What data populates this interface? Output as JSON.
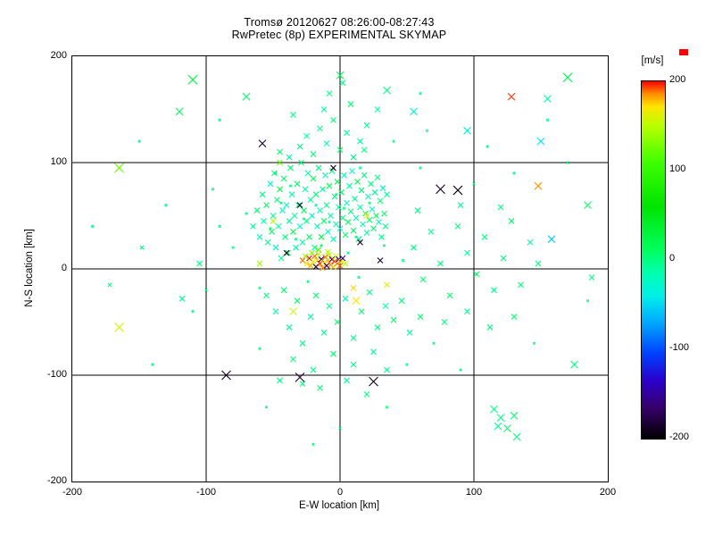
{
  "chart_data": {
    "type": "scatter",
    "title": "Tromsø 20120627 08:26:00-08:27:43",
    "subtitle": "RwPretec (8p) EXPERIMENTAL SKYMAP",
    "xlabel": "E-W location [km]",
    "ylabel": "N-S location [km]",
    "xlim": [
      -200,
      200
    ],
    "ylim": [
      -200,
      200
    ],
    "x_ticks": [
      -200,
      -100,
      0,
      100,
      200
    ],
    "y_ticks": [
      200,
      100,
      0,
      -100,
      -200
    ],
    "grid_values": [
      -100,
      0,
      100
    ],
    "marker": "x",
    "background_color": "#ffffff",
    "axis_color": "#000000",
    "colorbar": {
      "title": "[m/s]",
      "ticks": [
        200,
        100,
        0,
        -100,
        -200
      ],
      "range": [
        -200,
        200
      ],
      "stops": [
        {
          "v": -200,
          "c": "#000000"
        },
        {
          "v": -165,
          "c": "#38006b"
        },
        {
          "v": -135,
          "c": "#2a00cc"
        },
        {
          "v": -105,
          "c": "#0040ff"
        },
        {
          "v": -70,
          "c": "#00a8ff"
        },
        {
          "v": -40,
          "c": "#00f0e8"
        },
        {
          "v": -15,
          "c": "#00ffb0"
        },
        {
          "v": 10,
          "c": "#00ff60"
        },
        {
          "v": 60,
          "c": "#00e400"
        },
        {
          "v": 110,
          "c": "#40ff00"
        },
        {
          "v": 150,
          "c": "#b8ff00"
        },
        {
          "v": 172,
          "c": "#ffe400"
        },
        {
          "v": 186,
          "c": "#ff8c00"
        },
        {
          "v": 200,
          "c": "#ff0000"
        }
      ]
    },
    "point_fields": [
      "x_km",
      "y_km",
      "velocity_ms",
      "marker_halfsize_px_optional"
    ],
    "points": [
      [
        -28,
        8,
        190
      ],
      [
        -25,
        5,
        170
      ],
      [
        -23,
        10,
        200
      ],
      [
        -22,
        3,
        180
      ],
      [
        -20,
        7,
        160
      ],
      [
        -19,
        12,
        190
      ],
      [
        -18,
        2,
        -190
      ],
      [
        -17,
        8,
        175
      ],
      [
        -16,
        14,
        150
      ],
      [
        -15,
        5,
        195
      ],
      [
        -14,
        9,
        -180
      ],
      [
        -13,
        1,
        185
      ],
      [
        -12,
        6,
        165
      ],
      [
        -11,
        11,
        190
      ],
      [
        -10,
        3,
        -170
      ],
      [
        -9,
        8,
        180
      ],
      [
        -8,
        13,
        155
      ],
      [
        -7,
        4,
        190
      ],
      [
        -6,
        9,
        -185
      ],
      [
        -5,
        2,
        175
      ],
      [
        -4,
        7,
        195
      ],
      [
        -3,
        12,
        160
      ],
      [
        -2,
        5,
        185
      ],
      [
        -1,
        9,
        -175
      ],
      [
        0,
        3,
        190
      ],
      [
        1,
        7,
        170
      ],
      [
        -26,
        12,
        140
      ],
      [
        -21,
        15,
        130
      ],
      [
        -16,
        18,
        120
      ],
      [
        -9,
        16,
        145
      ],
      [
        2,
        10,
        -160
      ],
      [
        4,
        5,
        150
      ],
      [
        -65,
        40,
        -10
      ],
      [
        -62,
        55,
        5
      ],
      [
        -60,
        30,
        -20
      ],
      [
        -58,
        70,
        0
      ],
      [
        -57,
        45,
        -15
      ],
      [
        -55,
        60,
        10
      ],
      [
        -54,
        25,
        -5
      ],
      [
        -52,
        80,
        -25
      ],
      [
        -51,
        35,
        15
      ],
      [
        -50,
        50,
        -10
      ],
      [
        -49,
        90,
        0
      ],
      [
        -48,
        20,
        -30
      ],
      [
        -47,
        65,
        5
      ],
      [
        -46,
        40,
        -15
      ],
      [
        -45,
        75,
        20
      ],
      [
        -44,
        10,
        -5
      ],
      [
        -43,
        55,
        -20
      ],
      [
        -42,
        85,
        10
      ],
      [
        -41,
        30,
        0
      ],
      [
        -40,
        60,
        -25
      ],
      [
        -39,
        15,
        15
      ],
      [
        -38,
        45,
        -10
      ],
      [
        -37,
        95,
        5
      ],
      [
        -36,
        70,
        -15
      ],
      [
        -35,
        35,
        25
      ],
      [
        -34,
        50,
        -5
      ],
      [
        -33,
        20,
        -20
      ],
      [
        -32,
        80,
        10
      ],
      [
        -31,
        60,
        0
      ],
      [
        -30,
        40,
        -30
      ],
      [
        -29,
        100,
        5
      ],
      [
        -28,
        25,
        -10
      ],
      [
        -27,
        55,
        20
      ],
      [
        -26,
        75,
        -15
      ],
      [
        -25,
        45,
        0
      ],
      [
        -24,
        90,
        -20
      ],
      [
        -23,
        30,
        10
      ],
      [
        -22,
        65,
        -5
      ],
      [
        -21,
        50,
        -25
      ],
      [
        -20,
        85,
        15
      ],
      [
        -19,
        20,
        -10
      ],
      [
        -18,
        70,
        5
      ],
      [
        -17,
        40,
        -15
      ],
      [
        -16,
        95,
        0
      ],
      [
        -15,
        55,
        -20
      ],
      [
        -14,
        30,
        25
      ],
      [
        -13,
        75,
        -5
      ],
      [
        -12,
        45,
        10
      ],
      [
        -11,
        88,
        -15
      ],
      [
        -10,
        60,
        0
      ],
      [
        -9,
        35,
        -25
      ],
      [
        -8,
        78,
        15
      ],
      [
        -7,
        50,
        -10
      ],
      [
        -6,
        92,
        5
      ],
      [
        -5,
        28,
        -20
      ],
      [
        -4,
        68,
        0
      ],
      [
        -3,
        42,
        -15
      ],
      [
        -2,
        82,
        20
      ],
      [
        -1,
        58,
        -5
      ],
      [
        0,
        38,
        -25
      ],
      [
        1,
        72,
        10
      ],
      [
        2,
        48,
        0
      ],
      [
        3,
        88,
        -15
      ],
      [
        4,
        32,
        5
      ],
      [
        5,
        62,
        -20
      ],
      [
        6,
        44,
        15
      ],
      [
        7,
        78,
        -10
      ],
      [
        8,
        54,
        0
      ],
      [
        9,
        92,
        -25
      ],
      [
        10,
        36,
        10
      ],
      [
        11,
        66,
        -5
      ],
      [
        12,
        48,
        -15
      ],
      [
        13,
        82,
        20
      ],
      [
        14,
        28,
        0
      ],
      [
        15,
        58,
        -10
      ],
      [
        16,
        74,
        5
      ],
      [
        17,
        42,
        -20
      ],
      [
        18,
        88,
        0
      ],
      [
        19,
        52,
        15
      ],
      [
        20,
        34,
        -5
      ],
      [
        21,
        68,
        -15
      ],
      [
        22,
        46,
        10
      ],
      [
        23,
        80,
        0
      ],
      [
        24,
        56,
        -20
      ],
      [
        25,
        38,
        5
      ],
      [
        26,
        72,
        -10
      ],
      [
        27,
        50,
        15
      ],
      [
        28,
        86,
        0
      ],
      [
        29,
        44,
        -15
      ],
      [
        30,
        64,
        5
      ],
      [
        31,
        30,
        -5
      ],
      [
        32,
        76,
        -20
      ],
      [
        33,
        52,
        10
      ],
      [
        34,
        40,
        0
      ],
      [
        35,
        70,
        -10
      ],
      [
        -38,
        105,
        -10
      ],
      [
        -30,
        115,
        0
      ],
      [
        -25,
        125,
        -15
      ],
      [
        -20,
        108,
        5
      ],
      [
        -15,
        132,
        -5
      ],
      [
        -10,
        118,
        -20
      ],
      [
        -5,
        140,
        0
      ],
      [
        0,
        112,
        10
      ],
      [
        5,
        128,
        -10
      ],
      [
        10,
        105,
        0
      ],
      [
        15,
        120,
        -15
      ],
      [
        -45,
        110,
        5
      ],
      [
        20,
        135,
        -5
      ],
      [
        -35,
        145,
        0
      ],
      [
        -12,
        150,
        -10
      ],
      [
        8,
        155,
        5
      ],
      [
        18,
        112,
        0
      ],
      [
        -8,
        165,
        -5
      ],
      [
        2,
        175,
        0
      ],
      [
        28,
        150,
        -10
      ],
      [
        -55,
        -25,
        0
      ],
      [
        -48,
        -40,
        -10
      ],
      [
        -42,
        -20,
        5
      ],
      [
        -38,
        -55,
        -5
      ],
      [
        -32,
        -30,
        10
      ],
      [
        -28,
        -70,
        0
      ],
      [
        -22,
        -45,
        -15
      ],
      [
        -18,
        -25,
        5
      ],
      [
        -12,
        -60,
        -5
      ],
      [
        -8,
        -35,
        0
      ],
      [
        -2,
        -50,
        10
      ],
      [
        4,
        -28,
        -10
      ],
      [
        10,
        -65,
        0
      ],
      [
        16,
        -40,
        5
      ],
      [
        22,
        -22,
        -5
      ],
      [
        28,
        -55,
        0
      ],
      [
        34,
        -35,
        -15
      ],
      [
        40,
        -48,
        5
      ],
      [
        46,
        -30,
        0
      ],
      [
        52,
        -60,
        -10
      ],
      [
        -35,
        -85,
        0
      ],
      [
        -20,
        -95,
        -5
      ],
      [
        -5,
        -80,
        5
      ],
      [
        10,
        -90,
        0
      ],
      [
        25,
        -78,
        -10
      ],
      [
        -45,
        -105,
        0
      ],
      [
        -15,
        -112,
        5
      ],
      [
        5,
        -105,
        -5
      ],
      [
        20,
        -118,
        0
      ],
      [
        35,
        -95,
        -8
      ],
      [
        -28,
        -108,
        3
      ],
      [
        55,
        20,
        0
      ],
      [
        62,
        -10,
        5
      ],
      [
        68,
        35,
        -5
      ],
      [
        75,
        5,
        0
      ],
      [
        82,
        -25,
        10
      ],
      [
        88,
        40,
        0
      ],
      [
        95,
        15,
        -10
      ],
      [
        102,
        -5,
        5
      ],
      [
        108,
        30,
        0
      ],
      [
        115,
        -20,
        -5
      ],
      [
        122,
        10,
        0
      ],
      [
        128,
        45,
        5
      ],
      [
        135,
        -15,
        0
      ],
      [
        142,
        25,
        -10
      ],
      [
        148,
        5,
        0
      ],
      [
        60,
        -45,
        5
      ],
      [
        78,
        -50,
        0
      ],
      [
        95,
        -40,
        -5
      ],
      [
        112,
        -55,
        0
      ],
      [
        130,
        -45,
        5
      ],
      [
        58,
        55,
        0
      ],
      [
        90,
        60,
        -5
      ],
      [
        120,
        58,
        0
      ],
      [
        -85,
        -100,
        -190,
        5
      ],
      [
        25,
        -106,
        -190,
        5
      ],
      [
        -30,
        -102,
        -182,
        5
      ],
      [
        -165,
        -55,
        160,
        5
      ],
      [
        -165,
        95,
        125,
        5
      ],
      [
        -110,
        178,
        25,
        5
      ],
      [
        -120,
        148,
        10,
        4
      ],
      [
        170,
        180,
        15,
        5
      ],
      [
        155,
        160,
        -10,
        4
      ],
      [
        128,
        162,
        195,
        4
      ],
      [
        75,
        75,
        -190,
        5
      ],
      [
        88,
        74,
        -192,
        5
      ],
      [
        -58,
        118,
        -185,
        4
      ],
      [
        150,
        120,
        -40,
        4
      ],
      [
        158,
        28,
        -55,
        4
      ],
      [
        95,
        130,
        -30,
        4
      ],
      [
        55,
        148,
        -35,
        4
      ],
      [
        0,
        182,
        10,
        4
      ],
      [
        35,
        168,
        0,
        4
      ],
      [
        -70,
        162,
        5,
        4
      ],
      [
        148,
        78,
        185,
        4
      ],
      [
        115,
        -132,
        -5,
        4
      ],
      [
        120,
        -140,
        0,
        4
      ],
      [
        125,
        -150,
        8,
        4
      ],
      [
        130,
        -138,
        5,
        4
      ],
      [
        132,
        -158,
        0,
        4
      ],
      [
        118,
        -148,
        -5,
        4
      ],
      [
        185,
        60,
        8,
        4
      ],
      [
        175,
        -90,
        0,
        4
      ],
      [
        188,
        -8,
        0,
        3
      ],
      [
        -105,
        5,
        0,
        3
      ],
      [
        -118,
        -28,
        -5,
        3
      ],
      [
        12,
        -30,
        170,
        4
      ],
      [
        -35,
        -40,
        155,
        4
      ],
      [
        -148,
        20,
        0,
        2
      ],
      [
        -172,
        -15,
        0,
        2
      ],
      [
        -5,
        95,
        -190
      ],
      [
        -30,
        60,
        -185
      ],
      [
        -40,
        15,
        -180
      ],
      [
        15,
        25,
        -190
      ],
      [
        30,
        8,
        -185
      ],
      [
        20,
        50,
        170
      ],
      [
        -50,
        45,
        150
      ],
      [
        35,
        -15,
        160
      ],
      [
        -60,
        5,
        140
      ],
      [
        10,
        -18,
        175
      ],
      [
        -45,
        100,
        120
      ],
      [
        -33,
        28,
        0,
        1.3
      ],
      [
        -27,
        47,
        -5,
        1.3
      ],
      [
        -14,
        22,
        5,
        1.3
      ],
      [
        -44,
        62,
        0,
        1.3
      ],
      [
        -8,
        44,
        -10,
        1.3
      ],
      [
        3,
        57,
        0,
        1.3
      ],
      [
        12,
        30,
        -5,
        1.3
      ],
      [
        -52,
        38,
        5,
        1.3
      ],
      [
        -37,
        78,
        0,
        1.3
      ],
      [
        -18,
        60,
        -8,
        1.3
      ],
      [
        6,
        15,
        0,
        1.3
      ],
      [
        -24,
        -12,
        0,
        1.3
      ],
      [
        14,
        -8,
        -5,
        1.3
      ],
      [
        -60,
        -18,
        0,
        1.3
      ],
      [
        33,
        22,
        4,
        1.3
      ],
      [
        47,
        8,
        0,
        1.3
      ],
      [
        -3,
        70,
        -5,
        1.3
      ],
      [
        22,
        62,
        0,
        1.3
      ],
      [
        -48,
        90,
        3,
        1.3
      ],
      [
        -70,
        52,
        0,
        1.3
      ],
      [
        -80,
        20,
        -5,
        1.3
      ],
      [
        -90,
        40,
        0,
        1.3
      ],
      [
        -100,
        -20,
        5,
        1.3
      ],
      [
        70,
        -70,
        0,
        1.3
      ],
      [
        50,
        -90,
        -5,
        1.3
      ],
      [
        -60,
        -75,
        0,
        1.3
      ],
      [
        100,
        80,
        0,
        1.3
      ],
      [
        60,
        95,
        -5,
        1.3
      ],
      [
        130,
        90,
        0,
        1.3
      ],
      [
        -95,
        75,
        0,
        1.3
      ],
      [
        40,
        120,
        0,
        1.3
      ],
      [
        65,
        130,
        -5,
        1.3
      ],
      [
        -110,
        -40,
        0,
        1.3
      ],
      [
        145,
        -70,
        0,
        1.3
      ],
      [
        -130,
        60,
        0,
        1.3
      ],
      [
        155,
        140,
        0,
        1.3
      ],
      [
        -140,
        -90,
        0,
        1.3
      ],
      [
        90,
        -95,
        0,
        1.3
      ],
      [
        110,
        115,
        -5,
        1.3
      ],
      [
        35,
        -130,
        0,
        1.3
      ],
      [
        -55,
        -130,
        0,
        1.3
      ],
      [
        0,
        -150,
        0,
        1.3
      ],
      [
        -20,
        -165,
        0,
        1.3
      ],
      [
        170,
        100,
        0,
        1.3
      ],
      [
        -150,
        120,
        0,
        1.3
      ],
      [
        60,
        165,
        0,
        1.3
      ],
      [
        -90,
        140,
        0,
        1.3
      ],
      [
        185,
        -30,
        0,
        1.3
      ],
      [
        -185,
        40,
        0,
        1.3
      ],
      [
        15,
        95,
        -5,
        1.3
      ]
    ]
  }
}
